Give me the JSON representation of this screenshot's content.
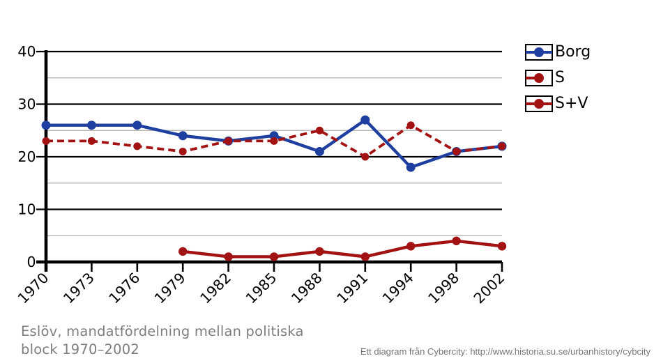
{
  "chart_data": {
    "type": "line",
    "title": "Eslöv, mandatfördelning mellan politiska block 1970–2002",
    "categories": [
      "1970",
      "1973",
      "1976",
      "1979",
      "1982",
      "1985",
      "1988",
      "1991",
      "1994",
      "1998",
      "2002"
    ],
    "series": [
      {
        "name": "Borg",
        "color": "#1e3f9f",
        "line_style": "solid",
        "marker": "circle",
        "values": [
          26,
          26,
          26,
          24,
          23,
          24,
          21,
          27,
          18,
          21,
          22
        ]
      },
      {
        "name": "S",
        "color": "#a31212",
        "line_style": "dashed",
        "marker": "circle",
        "values": [
          23,
          23,
          22,
          21,
          23,
          23,
          25,
          20,
          26,
          21,
          22
        ]
      },
      {
        "name": "S+V",
        "color": "#a31212",
        "line_style": "solid",
        "marker": "circle",
        "values": [
          null,
          null,
          null,
          2,
          1,
          1,
          2,
          1,
          3,
          4,
          3
        ]
      }
    ],
    "ylim": [
      0,
      40
    ],
    "y_major_ticks": [
      40,
      30,
      20,
      10,
      0
    ],
    "y_minor_gridlines": [
      35,
      25,
      15,
      5
    ],
    "grid": "on",
    "legend_position": "right"
  },
  "caption": {
    "line1": "Eslöv, mandatfördelning mellan politiska",
    "line2": "block 1970–2002"
  },
  "attribution": "Ett diagram från Cybercity: http://www.historia.su.se/urbanhistory/cybcity",
  "colors": {
    "borg_blue": "#1e3f9f",
    "s_red": "#a31212",
    "major_grid": "#000000",
    "minor_grid": "#ababab",
    "axis": "#000000",
    "caption_text": "#7e7e7e",
    "attribution_text": "#757575",
    "background": "#ffffff"
  }
}
